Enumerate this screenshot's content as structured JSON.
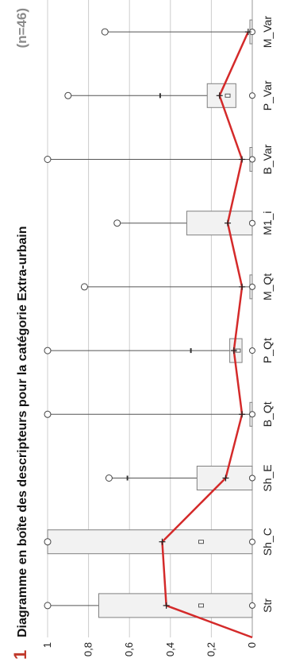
{
  "figure": {
    "number": "1",
    "n_label": "(n=46)"
  },
  "chart_data": {
    "type": "box",
    "title": "Diagramme en boîte des descripteurs pour la catégorie Extra-urbain",
    "xlabel": "",
    "ylabel": "",
    "ylim": [
      0,
      1
    ],
    "y_ticks": [
      "0",
      "0,2",
      "0,4",
      "0,6",
      "0,8",
      "1"
    ],
    "y_tick_values": [
      0,
      0.2,
      0.4,
      0.6,
      0.8,
      1
    ],
    "grid": true,
    "categories": [
      "Str",
      "Sh_C",
      "Sh_E",
      "B_Qt",
      "P_Qt",
      "M_Qt",
      "M1_i",
      "B_Var",
      "P_Var",
      "M_Var"
    ],
    "boxes": [
      {
        "min": 0,
        "q1": 0,
        "median": 0.25,
        "q3": 0.75,
        "max": 1,
        "mean": 0.42,
        "whisker_high": null
      },
      {
        "min": 0,
        "q1": 0,
        "median": 0.25,
        "q3": 1,
        "max": 1,
        "mean": 0.44,
        "whisker_high": null
      },
      {
        "min": 0,
        "q1": 0,
        "median": 0,
        "q3": 0.27,
        "max": 0.7,
        "mean": 0.13,
        "whisker_high": 0.61
      },
      {
        "min": 0,
        "q1": 0,
        "median": 0,
        "q3": 0,
        "max": 1,
        "mean": 0.05,
        "whisker_high": null
      },
      {
        "min": 0,
        "q1": 0.05,
        "median": 0.07,
        "q3": 0.11,
        "max": 1,
        "mean": 0.09,
        "whisker_high": 0.3
      },
      {
        "min": 0,
        "q1": 0,
        "median": 0,
        "q3": 0,
        "max": 0.82,
        "mean": 0.05,
        "whisker_high": null
      },
      {
        "min": 0,
        "q1": 0,
        "median": 0,
        "q3": 0.32,
        "max": 0.66,
        "mean": 0.12,
        "whisker_high": null
      },
      {
        "min": 0,
        "q1": 0,
        "median": 0,
        "q3": 0,
        "max": 1,
        "mean": 0.05,
        "whisker_high": null
      },
      {
        "min": 0,
        "q1": 0.08,
        "median": 0.12,
        "q3": 0.22,
        "max": 0.9,
        "mean": 0.16,
        "whisker_high": 0.45
      },
      {
        "min": 0,
        "q1": 0,
        "median": 0,
        "q3": 0,
        "max": 0.72,
        "mean": 0.02,
        "whisker_high": null
      }
    ],
    "mean_line_start": 0,
    "colors": {
      "mean_line": "#d42a2a",
      "box_fill": "#f2f2f2",
      "box_stroke": "#808080",
      "grid": "#cccccc",
      "figure_number": "#c0392b"
    }
  }
}
